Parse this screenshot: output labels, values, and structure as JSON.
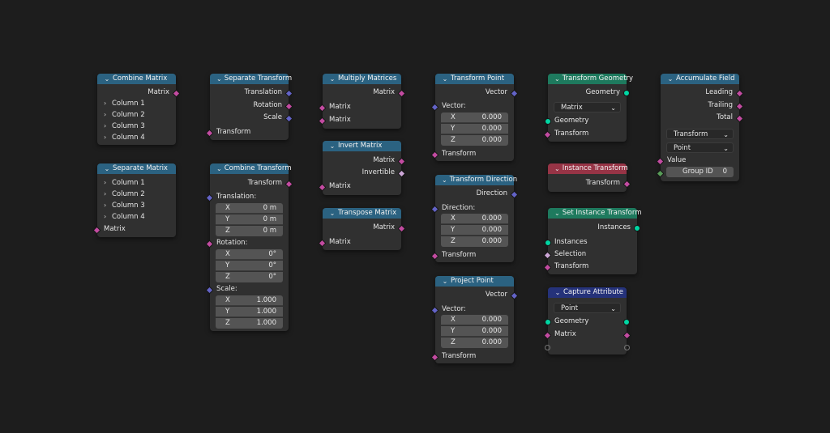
{
  "colors": {
    "background": "#1d1d1d",
    "node_body": "#303030",
    "header_blue": "#2b6281",
    "header_green": "#1e7a5e",
    "header_red": "#973446",
    "header_navy": "#25327a",
    "socket_matrix": "#c34ba1",
    "socket_vector": "#6363c7",
    "socket_geometry": "#00d6a3"
  },
  "combine_matrix": {
    "title": "Combine Matrix",
    "output": "Matrix",
    "columns": [
      "Column 1",
      "Column 2",
      "Column 3",
      "Column 4"
    ]
  },
  "separate_matrix": {
    "title": "Separate Matrix",
    "columns": [
      "Column 1",
      "Column 2",
      "Column 3",
      "Column 4"
    ],
    "input": "Matrix"
  },
  "separate_transform": {
    "title": "Separate Transform",
    "outputs": [
      "Translation",
      "Rotation",
      "Scale"
    ],
    "input": "Transform"
  },
  "combine_transform": {
    "title": "Combine Transform",
    "output": "Transform",
    "translation_label": "Translation:",
    "translation": [
      {
        "axis": "X",
        "value": "0 m"
      },
      {
        "axis": "Y",
        "value": "0 m"
      },
      {
        "axis": "Z",
        "value": "0 m"
      }
    ],
    "rotation_label": "Rotation:",
    "rotation": [
      {
        "axis": "X",
        "value": "0°"
      },
      {
        "axis": "Y",
        "value": "0°"
      },
      {
        "axis": "Z",
        "value": "0°"
      }
    ],
    "scale_label": "Scale:",
    "scale": [
      {
        "axis": "X",
        "value": "1.000"
      },
      {
        "axis": "Y",
        "value": "1.000"
      },
      {
        "axis": "Z",
        "value": "1.000"
      }
    ]
  },
  "multiply_matrices": {
    "title": "Multiply Matrices",
    "output": "Matrix",
    "inputs": [
      "Matrix",
      "Matrix"
    ]
  },
  "invert_matrix": {
    "title": "Invert Matrix",
    "outputs": [
      "Matrix",
      "Invertible"
    ],
    "input": "Matrix"
  },
  "transpose_matrix": {
    "title": "Transpose Matrix",
    "output": "Matrix",
    "input": "Matrix"
  },
  "transform_point": {
    "title": "Transform Point",
    "output": "Vector",
    "vector_label": "Vector:",
    "vector": [
      {
        "axis": "X",
        "value": "0.000"
      },
      {
        "axis": "Y",
        "value": "0.000"
      },
      {
        "axis": "Z",
        "value": "0.000"
      }
    ],
    "input": "Transform"
  },
  "transform_direction": {
    "title": "Transform Direction",
    "output": "Direction",
    "direction_label": "Direction:",
    "direction": [
      {
        "axis": "X",
        "value": "0.000"
      },
      {
        "axis": "Y",
        "value": "0.000"
      },
      {
        "axis": "Z",
        "value": "0.000"
      }
    ],
    "input": "Transform"
  },
  "project_point": {
    "title": "Project Point",
    "output": "Vector",
    "vector_label": "Vector:",
    "vector": [
      {
        "axis": "X",
        "value": "0.000"
      },
      {
        "axis": "Y",
        "value": "0.000"
      },
      {
        "axis": "Z",
        "value": "0.000"
      }
    ],
    "input": "Transform"
  },
  "transform_geometry": {
    "title": "Transform Geometry",
    "output": "Geometry",
    "mode": "Matrix",
    "inputs": [
      "Geometry",
      "Transform"
    ]
  },
  "instance_transform": {
    "title": "Instance Transform",
    "output": "Transform"
  },
  "set_instance_transform": {
    "title": "Set Instance Transform",
    "output": "Instances",
    "inputs": [
      "Instances",
      "Selection",
      "Transform"
    ]
  },
  "capture_attribute": {
    "title": "Capture Attribute",
    "domain": "Point",
    "items": [
      "Geometry",
      "Matrix"
    ]
  },
  "accumulate_field": {
    "title": "Accumulate Field",
    "outputs": [
      "Leading",
      "Trailing",
      "Total"
    ],
    "data_type": "Transform",
    "domain": "Point",
    "value_label": "Value",
    "group_id_label": "Group ID",
    "group_id_value": "0"
  }
}
